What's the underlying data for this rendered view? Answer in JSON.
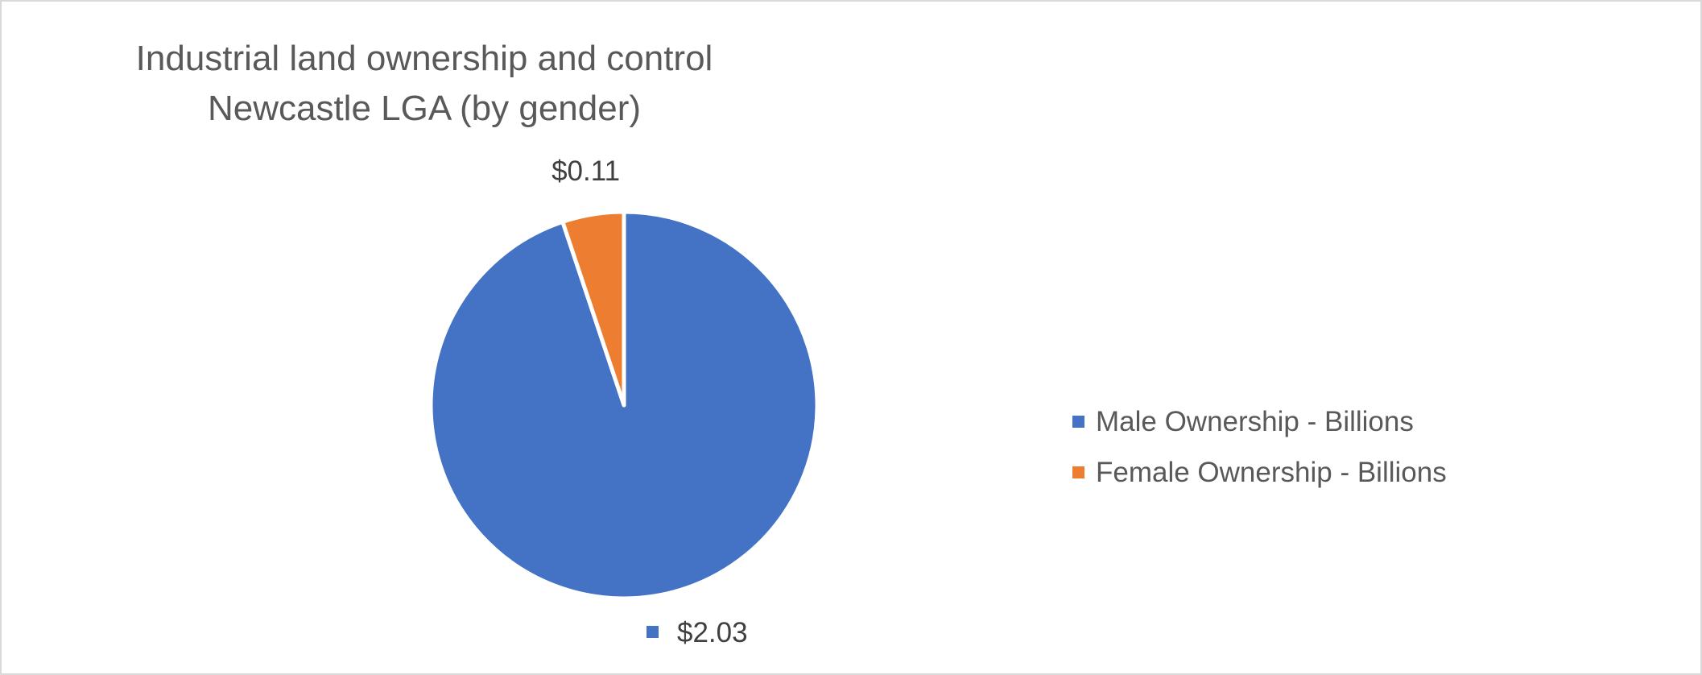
{
  "chart_data": {
    "type": "pie",
    "title_lines": [
      "Industrial land ownership and control",
      "Newcastle LGA (by gender)"
    ],
    "slices": [
      {
        "name": "Male Ownership - Billions",
        "value": 2.03,
        "label": "$2.03",
        "color": "#4472c4"
      },
      {
        "name": "Female Ownership - Billions",
        "value": 0.11,
        "label": "$0.11",
        "color": "#ed7d31"
      }
    ],
    "legend_position": "right"
  }
}
